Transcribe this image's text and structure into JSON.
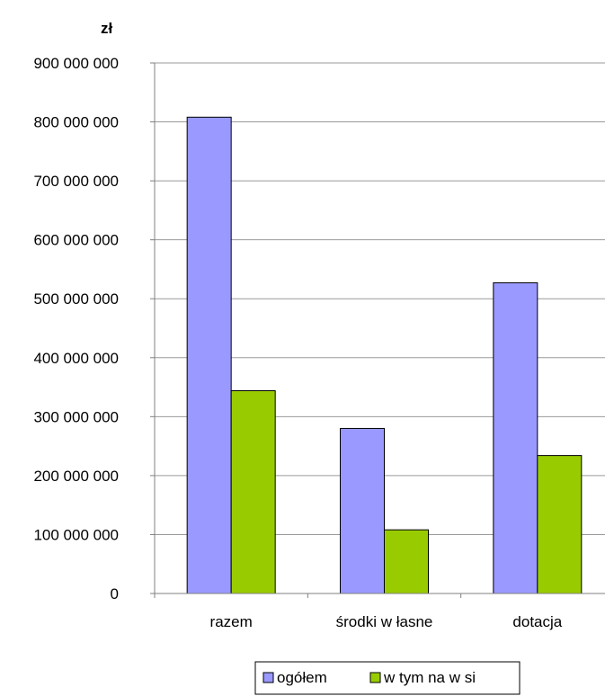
{
  "chart_data": {
    "type": "bar",
    "unit_label": "zł",
    "categories": [
      "razem",
      "środki w łasne",
      "dotacja"
    ],
    "series": [
      {
        "name": "ogółem",
        "color": "#9999ff",
        "values": [
          808000000,
          280000000,
          527000000
        ]
      },
      {
        "name": "w  tym na w si",
        "color": "#99cc00",
        "values": [
          344000000,
          108000000,
          234000000
        ]
      }
    ],
    "ylim": [
      0,
      900000000
    ],
    "yticks": [
      "0",
      "100 000 000",
      "200 000 000",
      "300 000 000",
      "400 000 000",
      "500 000 000",
      "600 000 000",
      "700 000 000",
      "800 000 000",
      "900 000 000"
    ],
    "grid": true,
    "legend_position": "bottom"
  }
}
